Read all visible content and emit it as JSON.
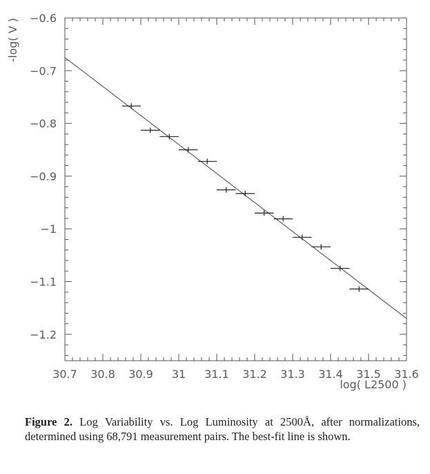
{
  "chart_data": {
    "type": "scatter",
    "title": "",
    "xlabel": "log( L2500 )",
    "ylabel": "-log( V )",
    "xlim": [
      30.7,
      31.6
    ],
    "ylim": [
      -1.25,
      -0.6
    ],
    "x_ticks": [
      "30.7",
      "30.8",
      "30.9",
      "31",
      "31.1",
      "31.2",
      "31.3",
      "31.4",
      "31.5",
      "31.6"
    ],
    "y_ticks": [
      "-0.6",
      "-0.7",
      "-0.8",
      "-0.9",
      "-1",
      "-1.1",
      "-1.2"
    ],
    "grid": false,
    "points": [
      {
        "x": 30.875,
        "y": -0.767,
        "xerr": 0.025
      },
      {
        "x": 30.925,
        "y": -0.813,
        "xerr": 0.025
      },
      {
        "x": 30.975,
        "y": -0.825,
        "xerr": 0.025
      },
      {
        "x": 31.025,
        "y": -0.85,
        "xerr": 0.025
      },
      {
        "x": 31.075,
        "y": -0.872,
        "xerr": 0.025
      },
      {
        "x": 31.125,
        "y": -0.926,
        "xerr": 0.025
      },
      {
        "x": 31.175,
        "y": -0.933,
        "xerr": 0.025
      },
      {
        "x": 31.225,
        "y": -0.97,
        "xerr": 0.025
      },
      {
        "x": 31.275,
        "y": -0.981,
        "xerr": 0.025
      },
      {
        "x": 31.325,
        "y": -1.016,
        "xerr": 0.025
      },
      {
        "x": 31.375,
        "y": -1.034,
        "xerr": 0.025
      },
      {
        "x": 31.425,
        "y": -1.075,
        "xerr": 0.025
      },
      {
        "x": 31.475,
        "y": -1.114,
        "xerr": 0.025
      }
    ],
    "fit_line": {
      "x": [
        30.7,
        31.6
      ],
      "y": [
        -0.675,
        -1.17
      ]
    }
  },
  "caption": {
    "label": "Figure 2.",
    "text": " Log Variability vs. Log Luminosity at 2500Å, after normalizations, determined using 68,791 measurement pairs. The best-fit line is shown."
  }
}
